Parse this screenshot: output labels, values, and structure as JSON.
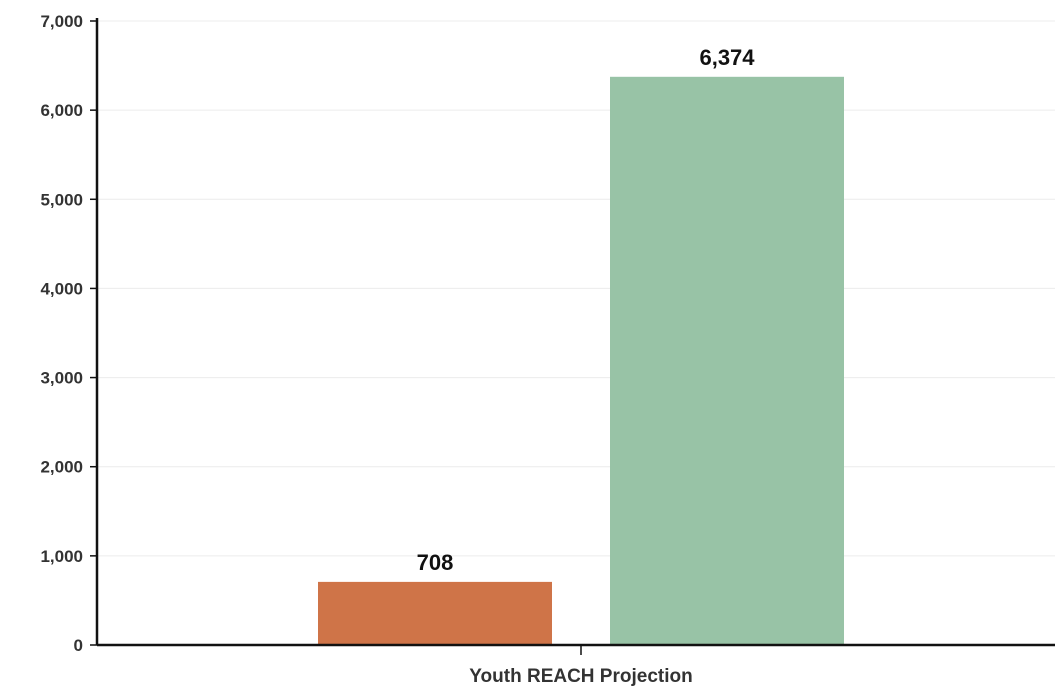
{
  "chart_data": {
    "type": "bar",
    "categories": [
      "Youth REACH Projection"
    ],
    "series": [
      {
        "values": [
          708
        ],
        "color": "#cf7448"
      },
      {
        "values": [
          6374
        ],
        "color": "#98c3a6"
      }
    ],
    "data_labels": [
      "708",
      "6,374"
    ],
    "yticks": [
      "0",
      "1,000",
      "2,000",
      "3,000",
      "4,000",
      "5,000",
      "6,000",
      "7,000"
    ],
    "ylim": [
      0,
      7000
    ],
    "grid": true,
    "legend": "none",
    "title": "",
    "xlabel": "",
    "ylabel": ""
  }
}
